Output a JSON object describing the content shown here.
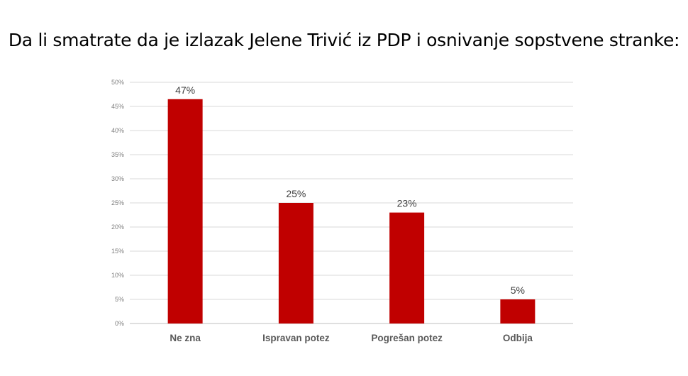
{
  "chart_data": {
    "type": "bar",
    "title": "Da li smatrate da je izlazak Jelene Trivić iz PDP i osnivanje sopstvene stranke:",
    "categories": [
      "Ne zna",
      "Ispravan potez",
      "Pogrešan potez",
      "Odbija"
    ],
    "values": [
      46.5,
      25,
      23,
      5
    ],
    "data_labels": [
      "47%",
      "25%",
      "23%",
      "5%"
    ],
    "ylim": [
      0,
      50
    ],
    "yticks": [
      0,
      5,
      10,
      15,
      20,
      25,
      30,
      35,
      40,
      45,
      50
    ],
    "ytick_labels": [
      "0%",
      "5%",
      "10%",
      "15%",
      "20%",
      "25%",
      "30%",
      "35%",
      "40%",
      "45%",
      "50%"
    ],
    "grid": true,
    "legend": "none",
    "bar_color": "#c00000"
  }
}
